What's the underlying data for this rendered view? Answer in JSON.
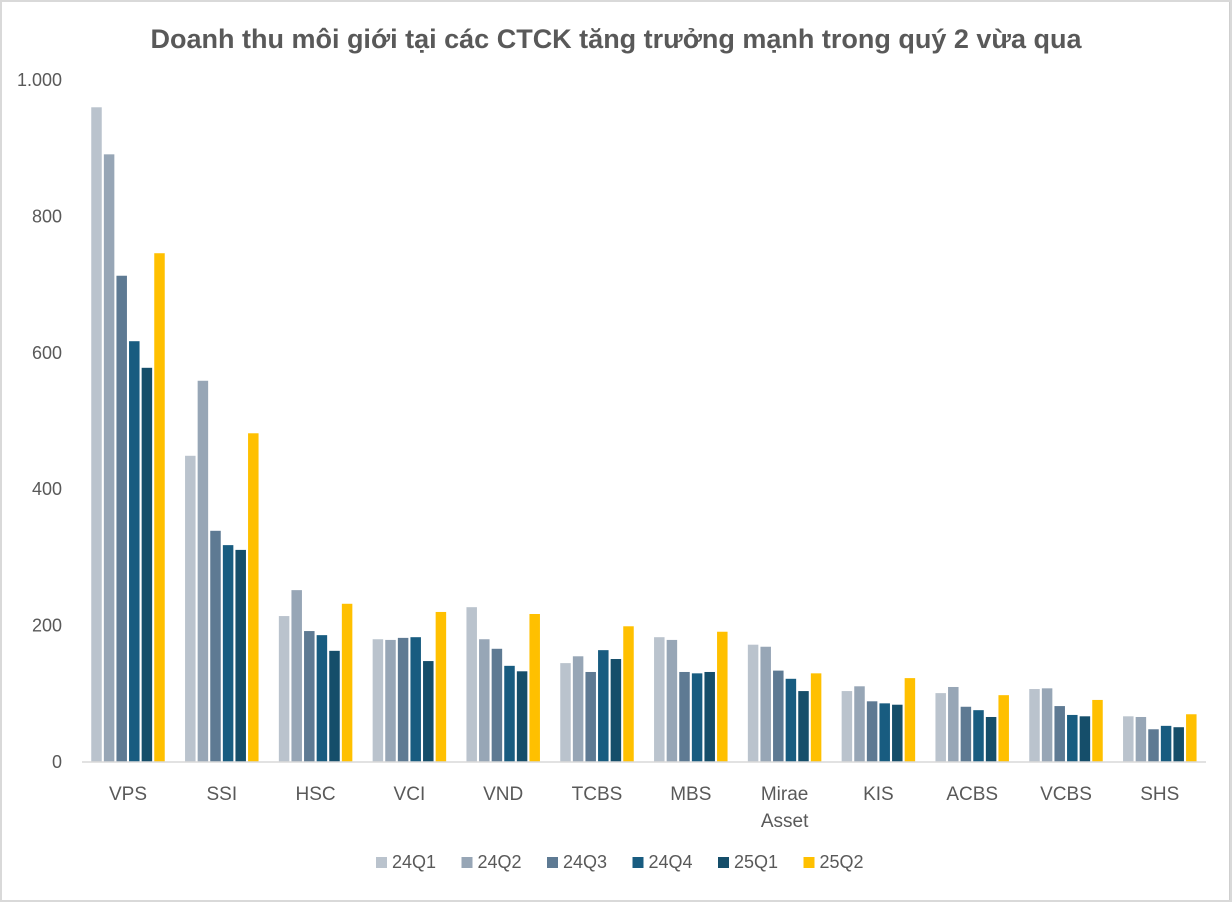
{
  "chart_data": {
    "type": "bar",
    "title": "Doanh thu môi giới tại các CTCK tăng trưởng mạnh trong quý 2 vừa qua",
    "xlabel": "",
    "ylabel": "",
    "ylim": [
      0,
      1000
    ],
    "yticks": [
      0,
      200,
      400,
      600,
      800,
      1000
    ],
    "ytick_labels": [
      "0",
      "200",
      "400",
      "600",
      "800",
      "1.000"
    ],
    "grid": false,
    "legend_position": "bottom",
    "categories": [
      "VPS",
      "SSI",
      "HSC",
      "VCI",
      "VND",
      "TCBS",
      "MBS",
      "Mirae Asset",
      "KIS",
      "ACBS",
      "VCBS",
      "SHS"
    ],
    "category_lines": [
      [
        "VPS"
      ],
      [
        "SSI"
      ],
      [
        "HSC"
      ],
      [
        "VCI"
      ],
      [
        "VND"
      ],
      [
        "TCBS"
      ],
      [
        "MBS"
      ],
      [
        "Mirae",
        "Asset"
      ],
      [
        "KIS"
      ],
      [
        "ACBS"
      ],
      [
        "VCBS"
      ],
      [
        "SHS"
      ]
    ],
    "series": [
      {
        "name": "24Q1",
        "color": "#BAC3CD",
        "values": [
          960,
          449,
          214,
          180,
          227,
          145,
          183,
          172,
          104,
          101,
          107,
          67
        ]
      },
      {
        "name": "24Q2",
        "color": "#97A6B6",
        "values": [
          891,
          559,
          252,
          179,
          180,
          155,
          179,
          169,
          111,
          110,
          108,
          66
        ]
      },
      {
        "name": "24Q3",
        "color": "#5E7A93",
        "values": [
          713,
          339,
          192,
          182,
          166,
          132,
          132,
          134,
          89,
          81,
          82,
          48
        ]
      },
      {
        "name": "24Q4",
        "color": "#185C80",
        "values": [
          617,
          318,
          186,
          183,
          141,
          164,
          130,
          122,
          86,
          76,
          69,
          53
        ]
      },
      {
        "name": "25Q1",
        "color": "#154E6A",
        "values": [
          578,
          311,
          163,
          148,
          133,
          151,
          132,
          104,
          84,
          66,
          67,
          51
        ]
      },
      {
        "name": "25Q2",
        "color": "#FFC000",
        "values": [
          746,
          482,
          232,
          220,
          217,
          199,
          191,
          130,
          123,
          98,
          91,
          70
        ]
      }
    ]
  }
}
